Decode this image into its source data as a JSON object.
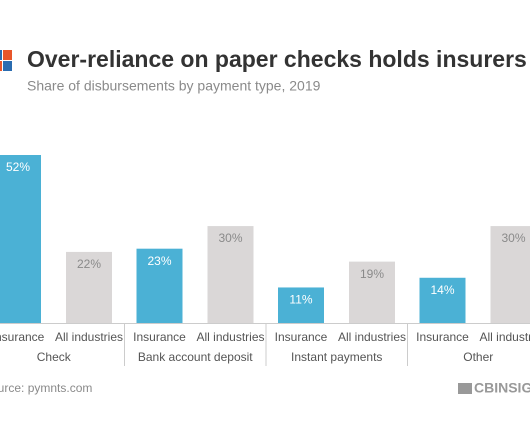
{
  "chart_data": {
    "type": "bar",
    "title": "Over-reliance on paper checks holds insurers back",
    "subtitle": "Share of disbursements by payment type, 2019",
    "categories": [
      "Check",
      "Bank account deposit",
      "Instant payments",
      "Other"
    ],
    "series": [
      {
        "name": "Insurance",
        "color": "#4bb1d5",
        "label_color": "#ffffff",
        "values": [
          52,
          23,
          11,
          14
        ],
        "value_labels": [
          "52%",
          "23%",
          "11%",
          "14%"
        ]
      },
      {
        "name": "All industries",
        "color": "#dad7d7",
        "label_color": "#8a8a8a",
        "values": [
          22,
          30,
          19,
          30
        ],
        "value_labels": [
          "22%",
          "30%",
          "19%",
          "30%"
        ]
      }
    ],
    "source": "Source: pymnts.com",
    "brand": "CBINSIGHTS"
  }
}
